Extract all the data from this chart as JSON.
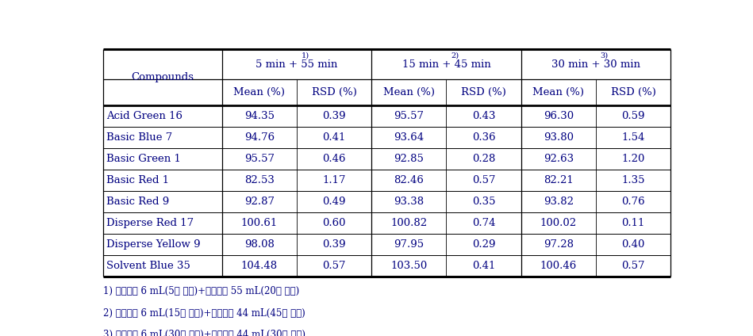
{
  "compounds": [
    "Acid Green 16",
    "Basic Blue 7",
    "Basic Green 1",
    "Basic Red 1",
    "Basic Red 9",
    "Disperse Red 17",
    "Disperse Yellow 9",
    "Solvent Blue 35"
  ],
  "col_group_labels_raw": [
    "5 min + 55 min",
    "15 min + 45 min",
    "30 min + 30 min"
  ],
  "col_group_superscripts": [
    "1)",
    "2)",
    "3)"
  ],
  "sub_headers": [
    "Mean (%)",
    "RSD (%)"
  ],
  "data": [
    [
      94.35,
      0.39,
      95.57,
      0.43,
      96.3,
      0.59
    ],
    [
      94.76,
      0.41,
      93.64,
      0.36,
      93.8,
      1.54
    ],
    [
      95.57,
      0.46,
      92.85,
      0.28,
      92.63,
      1.2
    ],
    [
      82.53,
      1.17,
      82.46,
      0.57,
      82.21,
      1.35
    ],
    [
      92.87,
      0.49,
      93.38,
      0.35,
      93.82,
      0.76
    ],
    [
      100.61,
      0.6,
      100.82,
      0.74,
      100.02,
      0.11
    ],
    [
      98.08,
      0.39,
      97.95,
      0.29,
      97.28,
      0.4
    ],
    [
      104.48,
      0.57,
      103.5,
      0.41,
      100.46,
      0.57
    ]
  ],
  "footnotes": [
    "1) 추출용매 6 mL(5분 추출)+추출용매 55 mL(20분 추출)",
    "2) 추출용매 6 mL(15분 추출)+추출용매 44 mL(45분 추출)",
    "3) 추출용매 6 mL(30분 추출)+추출용매 44 mL(30분 추출)"
  ],
  "bg_color": "#ffffff",
  "text_color": "#000080",
  "line_color": "#000000",
  "font_size": 9.5,
  "footnote_font_size": 8.5
}
